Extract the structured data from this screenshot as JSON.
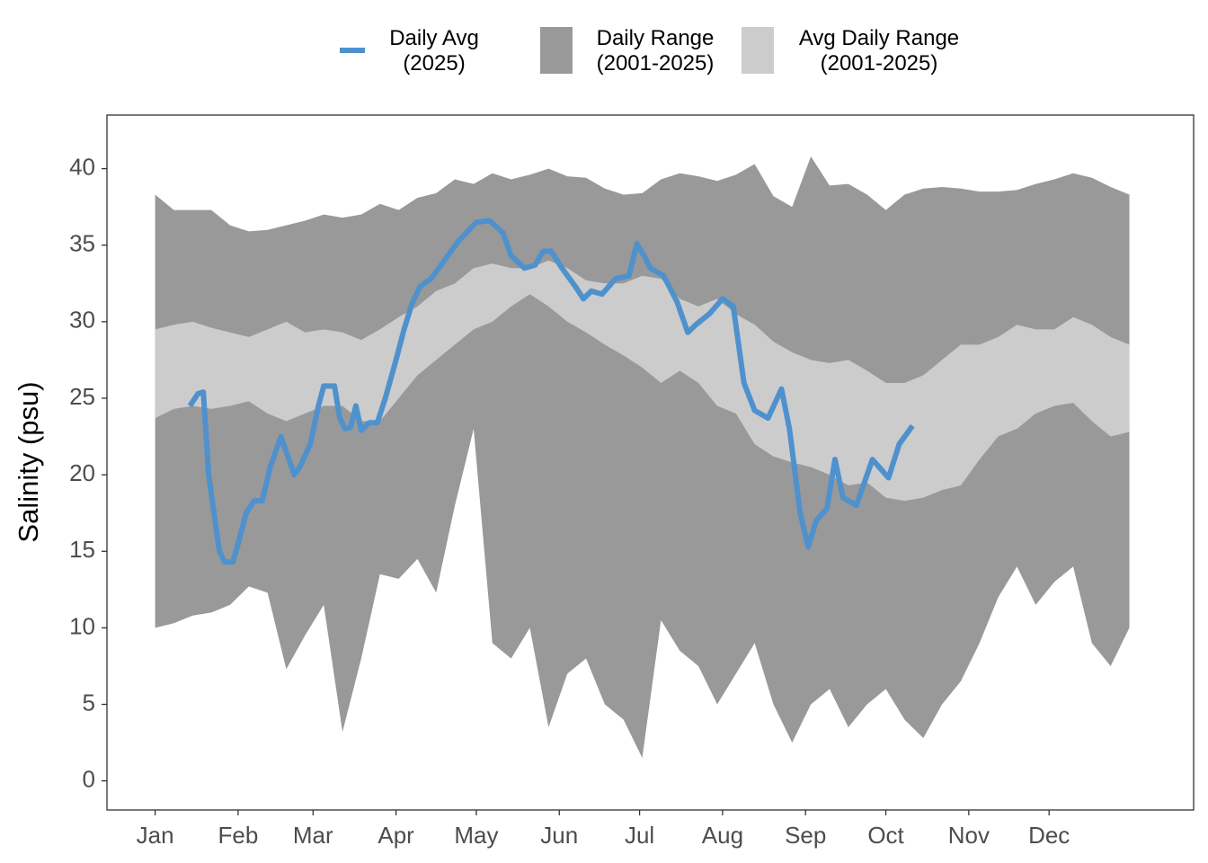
{
  "chart_data": {
    "type": "area",
    "y_label": "Salinity (psu)",
    "legend": "top",
    "xlim": [
      -17,
      389
    ],
    "ylim": [
      -1.9,
      43.5
    ],
    "xticks": [
      {
        "value": 1,
        "label": "Jan"
      },
      {
        "value": 32,
        "label": "Feb"
      },
      {
        "value": 60,
        "label": "Mar"
      },
      {
        "value": 91,
        "label": "Apr"
      },
      {
        "value": 121,
        "label": "May"
      },
      {
        "value": 152,
        "label": "Jun"
      },
      {
        "value": 182,
        "label": "Jul"
      },
      {
        "value": 213,
        "label": "Aug"
      },
      {
        "value": 244,
        "label": "Sep"
      },
      {
        "value": 274,
        "label": "Oct"
      },
      {
        "value": 305,
        "label": "Nov"
      },
      {
        "value": 335,
        "label": "Dec"
      }
    ],
    "yticks": [
      0,
      5,
      10,
      15,
      20,
      25,
      30,
      35,
      40
    ],
    "series": [
      {
        "name": "Daily Avg\n(2025)",
        "color": "#4f91cd",
        "x": [
          14,
          17,
          19,
          21,
          25,
          27,
          30,
          32,
          35,
          38,
          41,
          44,
          48,
          50,
          53,
          55,
          59,
          62,
          64,
          68,
          70,
          72,
          74,
          76,
          78,
          81,
          84,
          87,
          91,
          94,
          97,
          100,
          104,
          107,
          114,
          121,
          126,
          131,
          134,
          139,
          143,
          146,
          149,
          153,
          158,
          161,
          164,
          168,
          173,
          178,
          181,
          184,
          186,
          191,
          196,
          200,
          203,
          208,
          213,
          217,
          221,
          225,
          230,
          235,
          238,
          242,
          245,
          248,
          252,
          255,
          258,
          263,
          269,
          275,
          279,
          284
        ],
        "values": [
          24.5,
          25.3,
          25.4,
          20,
          15,
          14.3,
          14.3,
          15.5,
          17.5,
          18.3,
          18.3,
          20.5,
          22.5,
          21.5,
          20,
          20.5,
          22,
          24.5,
          25.8,
          25.8,
          23.7,
          23,
          23.1,
          24.5,
          22.9,
          23.4,
          23.4,
          25,
          27.5,
          29.5,
          31.2,
          32.3,
          32.8,
          33.5,
          35.2,
          36.5,
          36.6,
          35.8,
          34.3,
          33.5,
          33.7,
          34.6,
          34.6,
          33.5,
          32.3,
          31.5,
          32,
          31.8,
          32.8,
          33,
          35.1,
          34.2,
          33.5,
          33,
          31.3,
          29.3,
          29.8,
          30.5,
          31.5,
          31,
          26,
          24.2,
          23.7,
          25.6,
          23,
          17.5,
          15.3,
          17,
          17.8,
          21,
          18.5,
          18,
          21,
          19.8,
          22,
          23.2
        ]
      },
      {
        "name": "Daily Range\n(2001-2025)",
        "color": "#999999",
        "x": [
          1,
          8,
          15,
          22,
          29,
          36,
          43,
          50,
          57,
          64,
          71,
          78,
          85,
          92,
          99,
          106,
          113,
          120,
          127,
          134,
          141,
          148,
          155,
          162,
          169,
          176,
          183,
          190,
          197,
          204,
          211,
          218,
          225,
          232,
          239,
          246,
          253,
          260,
          267,
          274,
          281,
          288,
          295,
          302,
          309,
          316,
          323,
          330,
          337,
          344,
          351,
          358,
          365
        ],
        "lower": [
          10,
          10.3,
          10.8,
          11,
          11.5,
          12.7,
          12.3,
          7.3,
          9.5,
          11.5,
          3.2,
          8,
          13.5,
          13.2,
          14.5,
          12.3,
          18,
          23,
          9,
          8,
          10,
          3.5,
          7,
          8,
          5,
          4,
          1.5,
          10.5,
          8.5,
          7.5,
          5,
          7,
          9,
          5,
          2.5,
          5,
          6,
          3.5,
          5,
          6,
          4,
          2.8,
          5,
          6.5,
          9,
          12,
          14,
          11.5,
          13,
          14,
          9,
          7.5,
          10
        ],
        "upper": [
          38.3,
          37.3,
          37.3,
          37.3,
          36.3,
          35.9,
          36,
          36.3,
          36.6,
          37,
          36.8,
          37,
          37.7,
          37.3,
          38.1,
          38.4,
          39.3,
          39,
          39.7,
          39.3,
          39.6,
          40,
          39.5,
          39.4,
          38.7,
          38.3,
          38.4,
          39.3,
          39.7,
          39.5,
          39.2,
          39.6,
          40.3,
          38.2,
          37.5,
          40.8,
          38.9,
          39,
          38.3,
          37.3,
          38.3,
          38.7,
          38.8,
          38.7,
          38.5,
          38.5,
          38.6,
          39,
          39.3,
          39.7,
          39.4,
          38.8,
          38.3
        ]
      },
      {
        "name": "Avg Daily Range\n(2001-2025)",
        "color": "#cccccc",
        "x": [
          1,
          8,
          15,
          22,
          29,
          36,
          43,
          50,
          57,
          64,
          71,
          78,
          85,
          92,
          99,
          106,
          113,
          120,
          127,
          134,
          141,
          148,
          155,
          162,
          169,
          176,
          183,
          190,
          197,
          204,
          211,
          218,
          225,
          232,
          239,
          246,
          253,
          260,
          267,
          274,
          281,
          288,
          295,
          302,
          309,
          316,
          323,
          330,
          337,
          344,
          351,
          358,
          365
        ],
        "lower": [
          23.7,
          24.3,
          24.5,
          24.3,
          24.5,
          24.8,
          24,
          23.5,
          24,
          24.5,
          24.5,
          23.5,
          23.5,
          25,
          26.5,
          27.5,
          28.5,
          29.5,
          30,
          31,
          31.8,
          31,
          30,
          29.3,
          28.5,
          27.8,
          27,
          26,
          26.8,
          26,
          24.5,
          24,
          22,
          21.2,
          20.8,
          20.5,
          20,
          19.3,
          19.5,
          18.5,
          18.3,
          18.5,
          19,
          19.3,
          21,
          22.5,
          23,
          24,
          24.5,
          24.7,
          23.5,
          22.5,
          22.8
        ],
        "upper": [
          29.5,
          29.8,
          30,
          29.6,
          29.3,
          29,
          29.5,
          30,
          29.3,
          29.5,
          29.3,
          28.8,
          29.5,
          30.3,
          31,
          32,
          32.5,
          33.5,
          33.8,
          33.5,
          33.5,
          34,
          33.5,
          32.7,
          32.5,
          32.5,
          33,
          32.8,
          31.5,
          31,
          31.5,
          30.5,
          29.8,
          28.7,
          28,
          27.5,
          27.3,
          27.5,
          26.8,
          26,
          26,
          26.5,
          27.5,
          28.5,
          28.5,
          29,
          29.8,
          29.5,
          29.5,
          30.3,
          29.8,
          29,
          28.5
        ]
      }
    ]
  }
}
